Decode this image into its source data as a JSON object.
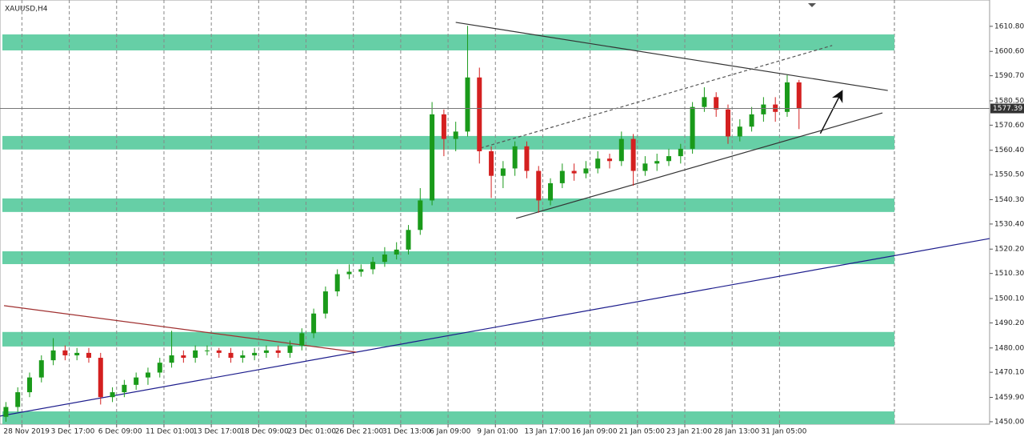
{
  "chart_data": {
    "type": "candlestick",
    "title": "XAUUSD,H4",
    "categories": [
      "28 Nov 2019",
      null,
      null,
      null,
      "3 Dec 17:00",
      null,
      null,
      null,
      "6 Dec 09:00",
      null,
      null,
      null,
      "11 Dec 01:00",
      null,
      null,
      null,
      "13 Dec 17:00",
      null,
      null,
      null,
      "18 Dec 09:00",
      null,
      null,
      null,
      "23 Dec 01:00",
      null,
      null,
      null,
      "26 Dec 21:00",
      null,
      null,
      null,
      "31 Dec 13:00",
      null,
      null,
      null,
      "6 Jan 09:00",
      null,
      null,
      null,
      "9 Jan 01:00",
      null,
      null,
      null,
      "13 Jan 17:00",
      null,
      null,
      null,
      "16 Jan 09:00",
      null,
      null,
      null,
      "21 Jan 05:00",
      null,
      null,
      null,
      "23 Jan 21:00",
      null,
      null,
      null,
      "28 Jan 13:00",
      null,
      null,
      null,
      "31 Jan 05:00",
      null,
      null,
      null
    ],
    "open": [
      1452,
      1456,
      1462,
      1468,
      1475,
      1479,
      1477,
      1478,
      1476,
      1460,
      1462,
      1465,
      1468,
      1470,
      1474,
      1477,
      1476,
      1479,
      1479,
      1478,
      1476,
      1477,
      1478,
      1479,
      1478,
      1481,
      1486,
      1494,
      1503,
      1510,
      1511,
      1512,
      1515,
      1518,
      1520,
      1528,
      1540,
      1575,
      1565,
      1568,
      1590,
      1560,
      1550,
      1553,
      1562,
      1552,
      1540,
      1547,
      1552,
      1551,
      1553,
      1557,
      1556,
      1565,
      1552,
      1555,
      1556,
      1558,
      1561,
      1578,
      1582,
      1577,
      1566,
      1570,
      1575,
      1579,
      1576,
      1588
    ],
    "high": [
      1458,
      1464,
      1470,
      1477,
      1484,
      1481,
      1480,
      1480,
      1478,
      1464,
      1467,
      1470,
      1472,
      1476,
      1487,
      1479,
      1481,
      1481,
      1480,
      1480,
      1479,
      1480,
      1481,
      1481,
      1483,
      1488,
      1496,
      1505,
      1512,
      1514,
      1514,
      1517,
      1521,
      1523,
      1530,
      1545,
      1580,
      1577,
      1572,
      1611,
      1594,
      1562,
      1556,
      1564,
      1564,
      1554,
      1549,
      1555,
      1555,
      1556,
      1560,
      1559,
      1568,
      1567,
      1558,
      1559,
      1561,
      1563,
      1580,
      1586,
      1584,
      1579,
      1573,
      1578,
      1582,
      1582,
      1591,
      1589
    ],
    "low": [
      1450,
      1454,
      1460,
      1466,
      1473,
      1475,
      1475,
      1474,
      1457,
      1458,
      1460,
      1463,
      1465,
      1468,
      1472,
      1474,
      1474,
      1477,
      1476,
      1474,
      1474,
      1475,
      1476,
      1476,
      1476,
      1479,
      1484,
      1492,
      1501,
      1508,
      1509,
      1510,
      1513,
      1516,
      1518,
      1526,
      1538,
      1558,
      1560,
      1566,
      1555,
      1541,
      1545,
      1550,
      1549,
      1535,
      1538,
      1545,
      1548,
      1549,
      1551,
      1553,
      1554,
      1546,
      1550,
      1552,
      1554,
      1555,
      1559,
      1576,
      1574,
      1563,
      1564,
      1568,
      1572,
      1572,
      1574,
      1569
    ],
    "close": [
      1456,
      1462,
      1468,
      1475,
      1479,
      1477,
      1478,
      1476,
      1460,
      1462,
      1465,
      1468,
      1470,
      1474,
      1477,
      1476,
      1479,
      1479,
      1478,
      1476,
      1477,
      1478,
      1479,
      1478,
      1481,
      1486,
      1494,
      1503,
      1510,
      1511,
      1512,
      1515,
      1518,
      1520,
      1528,
      1540,
      1575,
      1565,
      1568,
      1590,
      1560,
      1550,
      1553,
      1562,
      1552,
      1540,
      1547,
      1552,
      1551,
      1553,
      1557,
      1556,
      1565,
      1552,
      1555,
      1556,
      1558,
      1561,
      1578,
      1582,
      1577,
      1566,
      1570,
      1575,
      1579,
      1576,
      1588,
      1577.39
    ],
    "up_color": "#1a9a1a",
    "down_color": "#d42020",
    "xlim": [
      -0.5,
      83.1
    ],
    "ylim": [
      1449.0,
      1621.5
    ],
    "yticks": [
      {
        "value": 1450.0,
        "label": "1450.00"
      },
      {
        "value": 1459.9,
        "label": "1459.90"
      },
      {
        "value": 1470.1,
        "label": "1470.10"
      },
      {
        "value": 1480.0,
        "label": "1480.00"
      },
      {
        "value": 1490.2,
        "label": "1490.20"
      },
      {
        "value": 1500.1,
        "label": "1500.10"
      },
      {
        "value": 1510.3,
        "label": "1510.30"
      },
      {
        "value": 1520.2,
        "label": "1520.20"
      },
      {
        "value": 1530.4,
        "label": "1530.40"
      },
      {
        "value": 1540.3,
        "label": "1540.30"
      },
      {
        "value": 1550.5,
        "label": "1550.50"
      },
      {
        "value": 1560.4,
        "label": "1560.40"
      },
      {
        "value": 1570.6,
        "label": "1570.60"
      },
      {
        "value": 1580.5,
        "label": "1580.50"
      },
      {
        "value": 1590.7,
        "label": "1590.70"
      },
      {
        "value": 1600.6,
        "label": "1600.60"
      },
      {
        "value": 1610.8,
        "label": "1610.80"
      }
    ],
    "zones": [
      [
        1601.0,
        1607.5
      ],
      [
        1560.7,
        1566.2
      ],
      [
        1535.3,
        1540.8
      ],
      [
        1514.1,
        1519.3
      ],
      [
        1480.6,
        1486.5
      ],
      [
        1449.0,
        1454.2
      ]
    ],
    "zone_color": "#66cfa6",
    "trendlines": [
      {
        "x": [
          38.0,
          74.5
        ],
        "y": [
          1612.4,
          1584.7
        ],
        "color": "#333333",
        "dashed": false
      },
      {
        "x": [
          43.1,
          74.05
        ],
        "y": [
          1532.7,
          1575.6
        ],
        "color": "#333333",
        "dashed": false
      },
      {
        "x": [
          40.1,
          69.8
        ],
        "y": [
          1561.3,
          1603.0
        ],
        "color": "#555555",
        "dashed": true
      },
      {
        "x": [
          -0.5,
          83.1
        ],
        "y": [
          1452.3,
          1524.5
        ],
        "color": "#1c1c8c",
        "dashed": false
      },
      {
        "x": [
          -0.16,
          29.6
        ],
        "y": [
          1497.2,
          1478.3
        ],
        "color": "#a03030",
        "dashed": false
      }
    ],
    "arrow": {
      "x": [
        68.8,
        70.6
      ],
      "y": [
        1567.2,
        1584.1
      ],
      "color": "#111111"
    },
    "grid": true
  }
}
